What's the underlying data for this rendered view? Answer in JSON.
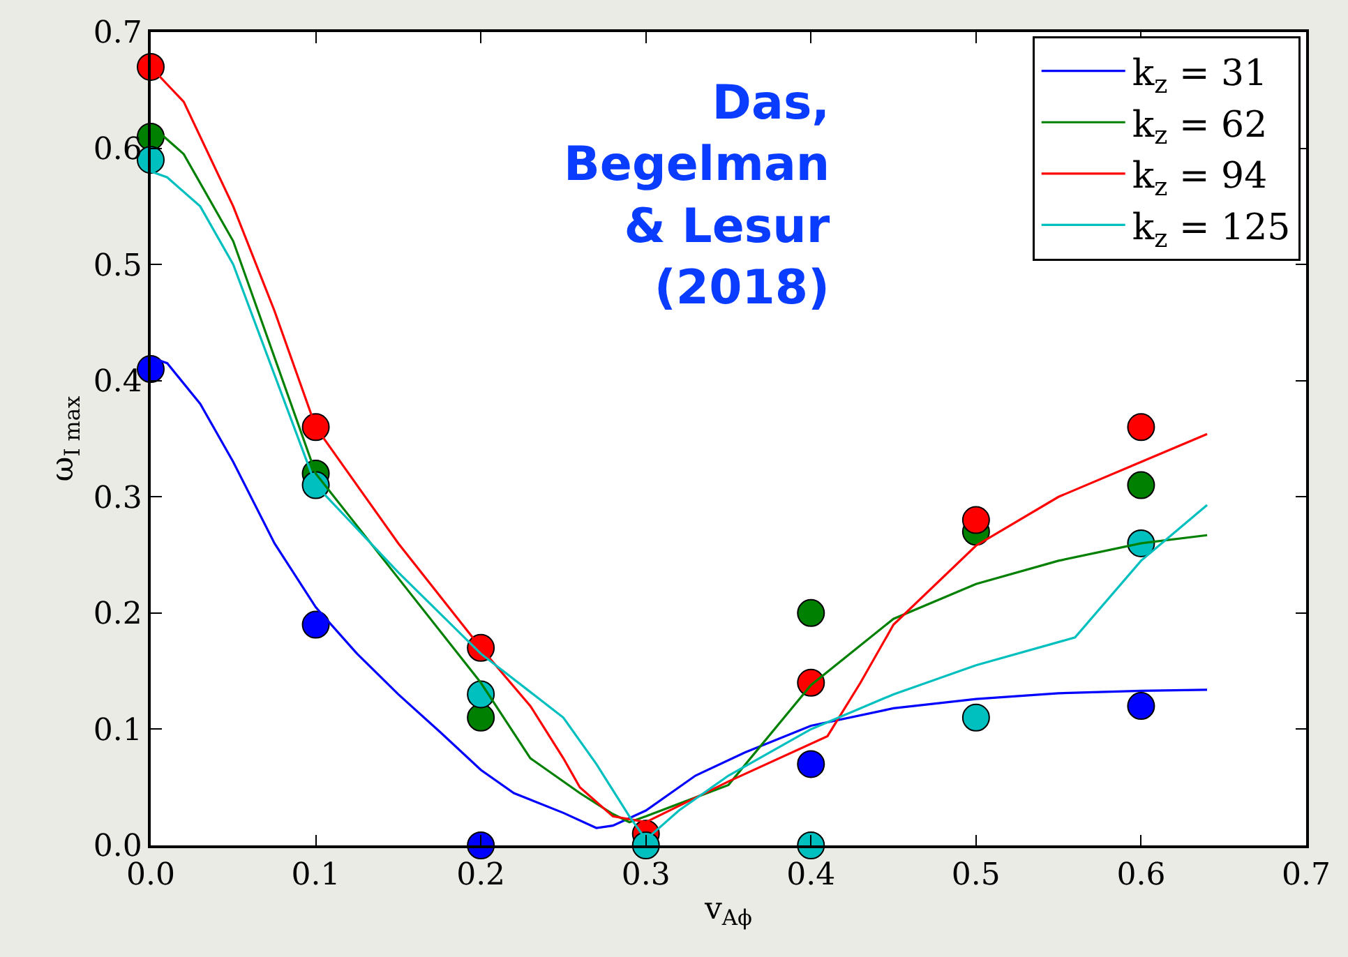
{
  "chart_data": {
    "type": "line",
    "xlabel": "v$_{Aϕ}$",
    "ylabel": "ω$_{I max}$",
    "xlim": [
      0.0,
      0.7
    ],
    "ylim": [
      0.0,
      0.7
    ],
    "xticks": [
      {
        "value": 0.0,
        "label": "0.0"
      },
      0.1,
      0.2,
      0.3,
      0.4,
      0.5,
      0.6,
      0.7
    ],
    "yticks": [
      {
        "value": 0.0,
        "label": "0.0"
      },
      0.1,
      0.2,
      0.3,
      0.4,
      0.5,
      0.6,
      0.7
    ],
    "legend": "top right",
    "annotations": [
      "Das,\nBegelman\n& Lesur\n(2018)"
    ],
    "series": [
      {
        "name": "k$_{z}$ = 31",
        "color": "#0000ff",
        "marker": "none",
        "x": [
          0,
          0.01,
          0.03,
          0.05,
          0.075,
          0.1,
          0.125,
          0.15,
          0.175,
          0.2,
          0.22,
          0.25,
          0.27,
          0.28,
          0.3,
          0.33,
          0.36,
          0.4,
          0.45,
          0.5,
          0.55,
          0.6,
          0.64
        ],
        "values": [
          0.42,
          0.415,
          0.38,
          0.33,
          0.26,
          0.205,
          0.165,
          0.13,
          0.098,
          0.065,
          0.045,
          0.028,
          0.015,
          0.017,
          0.03,
          0.06,
          0.08,
          0.103,
          0.118,
          0.126,
          0.131,
          0.133,
          0.134
        ]
      },
      {
        "name": "k$_{z}$ = 62",
        "color": "#008000",
        "marker": "none",
        "x": [
          0,
          0.02,
          0.05,
          0.1,
          0.15,
          0.2,
          0.23,
          0.26,
          0.28,
          0.29,
          0.3,
          0.35,
          0.4,
          0.45,
          0.5,
          0.55,
          0.6,
          0.64
        ],
        "values": [
          0.62,
          0.595,
          0.52,
          0.32,
          0.23,
          0.14,
          0.075,
          0.045,
          0.027,
          0.02,
          0.025,
          0.052,
          0.138,
          0.195,
          0.225,
          0.245,
          0.26,
          0.267
        ]
      },
      {
        "name": "k$_{z}$ = 94",
        "color": "#ff0000",
        "marker": "none",
        "x": [
          0,
          0.02,
          0.05,
          0.075,
          0.1,
          0.15,
          0.2,
          0.23,
          0.25,
          0.26,
          0.28,
          0.3,
          0.35,
          0.41,
          0.43,
          0.45,
          0.5,
          0.55,
          0.6,
          0.64
        ],
        "values": [
          0.67,
          0.64,
          0.55,
          0.46,
          0.36,
          0.26,
          0.17,
          0.12,
          0.075,
          0.05,
          0.025,
          0.02,
          0.055,
          0.094,
          0.14,
          0.19,
          0.258,
          0.3,
          0.33,
          0.354
        ]
      },
      {
        "name": "k$_{z}$ = 125",
        "color": "#00bfbf",
        "marker": "none",
        "x": [
          0,
          0.01,
          0.03,
          0.05,
          0.1,
          0.15,
          0.2,
          0.25,
          0.27,
          0.29,
          0.3,
          0.32,
          0.35,
          0.4,
          0.45,
          0.5,
          0.56,
          0.6,
          0.64
        ],
        "values": [
          0.58,
          0.575,
          0.55,
          0.5,
          0.31,
          0.235,
          0.165,
          0.11,
          0.07,
          0.025,
          0.005,
          0.03,
          0.06,
          0.1,
          0.13,
          0.155,
          0.179,
          0.245,
          0.293
        ]
      },
      {
        "color": "#0000ff",
        "type": "scatter",
        "marker": "circle",
        "x": [
          0,
          0.1,
          0.2,
          0.4,
          0.6
        ],
        "values": [
          0.41,
          0.19,
          0.0,
          0.07,
          0.12
        ]
      },
      {
        "color": "#008000",
        "type": "scatter",
        "marker": "circle",
        "x": [
          0,
          0.1,
          0.2,
          0.4,
          0.5,
          0.6
        ],
        "values": [
          0.61,
          0.32,
          0.11,
          0.2,
          0.27,
          0.31
        ]
      },
      {
        "color": "#ff0000",
        "type": "scatter",
        "marker": "circle",
        "x": [
          0,
          0.1,
          0.2,
          0.3,
          0.4,
          0.5,
          0.6
        ],
        "values": [
          0.67,
          0.36,
          0.17,
          0.01,
          0.14,
          0.28,
          0.36
        ]
      },
      {
        "color": "#00bfbf",
        "type": "scatter",
        "marker": "circle",
        "x": [
          0,
          0.1,
          0.2,
          0.3,
          0.4,
          0.5,
          0.6
        ],
        "values": [
          0.59,
          0.31,
          0.13,
          0.0,
          0.0,
          0.11,
          0.26
        ]
      }
    ]
  }
}
